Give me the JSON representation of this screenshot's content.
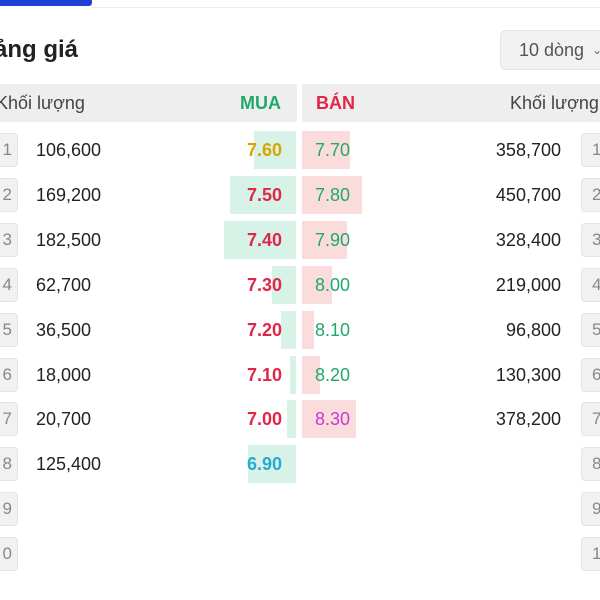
{
  "title": "ảng giá",
  "rows_select": {
    "value": "10 dòng"
  },
  "headers": {
    "volume_left": "Khối lượng",
    "buy": "MUA",
    "sell": "BÁN",
    "volume_right": "Khối lượng"
  },
  "colors": {
    "ceiling": "#c73ad6",
    "ref": "#d9a400",
    "up": "#21a86b",
    "down": "#e0264a",
    "floor": "#2aa9d2"
  },
  "left_index": [
    "1",
    "2",
    "3",
    "4",
    "5",
    "6",
    "7",
    "8",
    "9",
    "0"
  ],
  "right_index": [
    "1",
    "2",
    "3",
    "4",
    "5",
    "6",
    "7",
    "8",
    "9",
    "1"
  ],
  "bids": [
    {
      "volume": "106,600",
      "price": "7.60",
      "color": "#d9a400",
      "bar": 0.14
    },
    {
      "volume": "169,200",
      "price": "7.50",
      "color": "#e0264a",
      "bar": 0.22
    },
    {
      "volume": "182,500",
      "price": "7.40",
      "color": "#e0264a",
      "bar": 0.24
    },
    {
      "volume": "62,700",
      "price": "7.30",
      "color": "#e0264a",
      "bar": 0.08
    },
    {
      "volume": "36,500",
      "price": "7.20",
      "color": "#e0264a",
      "bar": 0.05
    },
    {
      "volume": "18,000",
      "price": "7.10",
      "color": "#e0264a",
      "bar": 0.02
    },
    {
      "volume": "20,700",
      "price": "7.00",
      "color": "#e0264a",
      "bar": 0.03
    },
    {
      "volume": "125,400",
      "price": "6.90",
      "color": "#2aa9d2",
      "bar": 0.16
    }
  ],
  "asks": [
    {
      "volume": "358,700",
      "price": "7.70",
      "color": "#21a86b",
      "bar": 0.16
    },
    {
      "volume": "450,700",
      "price": "7.80",
      "color": "#21a86b",
      "bar": 0.2
    },
    {
      "volume": "328,400",
      "price": "7.90",
      "color": "#21a86b",
      "bar": 0.15
    },
    {
      "volume": "219,000",
      "price": "8.00",
      "color": "#21a86b",
      "bar": 0.1
    },
    {
      "volume": "96,800",
      "price": "8.10",
      "color": "#21a86b",
      "bar": 0.04
    },
    {
      "volume": "130,300",
      "price": "8.20",
      "color": "#21a86b",
      "bar": 0.06
    },
    {
      "volume": "378,200",
      "price": "8.30",
      "color": "#c73ad6",
      "bar": 0.18
    }
  ]
}
